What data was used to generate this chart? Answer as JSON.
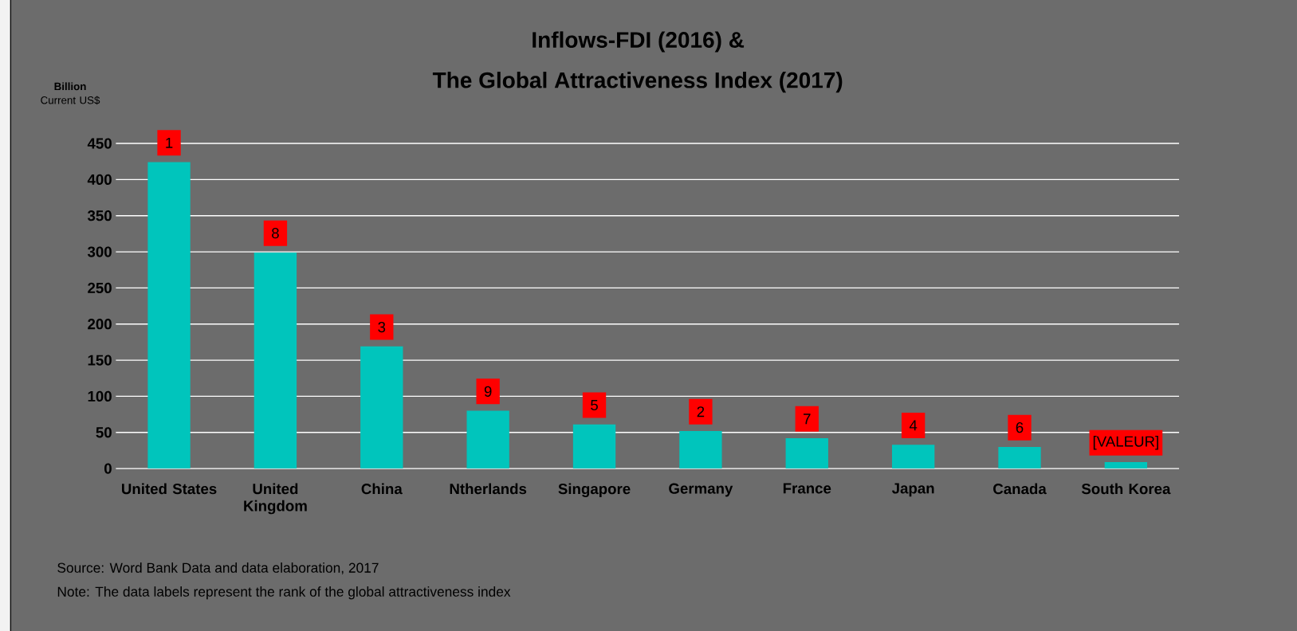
{
  "chart_data": {
    "type": "bar",
    "title": "Inflows-FDI (2016) &",
    "subtitle": "The Global Attractiveness Index (2017)",
    "ylabel": "**Billion** Current US$",
    "categories": [
      "United States",
      "United Kingdom",
      "China",
      "Ntherlands",
      "Singapore",
      "Germany",
      "France",
      "Japan",
      "Canada",
      "South Korea"
    ],
    "values": [
      424,
      299,
      169,
      80,
      61,
      52,
      42,
      33,
      30,
      9
    ],
    "color": "#00c5bc",
    "ylim": [
      0,
      450
    ],
    "yticks": [
      0,
      50,
      100,
      150,
      200,
      250,
      300,
      350,
      400,
      450
    ],
    "grid": "y",
    "annotations": [
      "Source: Word Bank Data and data elaboration, 2017",
      "Note: The data labels represent the rank of the global attractiveness index",
      {
        "text": "1",
        "x": "United States",
        "y": 424
      },
      {
        "text": "8",
        "x": "United Kingdom",
        "y": 299
      },
      {
        "text": "3",
        "x": "China",
        "y": 169
      },
      {
        "text": "9",
        "x": "Ntherlands",
        "y": 80
      },
      {
        "text": "5",
        "x": "Singapore",
        "y": 61
      },
      {
        "text": "2",
        "x": "Germany",
        "y": 52
      },
      {
        "text": "7",
        "x": "France",
        "y": 42
      },
      {
        "text": "4",
        "x": "Japan",
        "y": 33
      },
      {
        "text": "6",
        "x": "Canada",
        "y": 30
      },
      {
        "text": "[VALEUR]",
        "x": "South Korea",
        "y": 9
      }
    ]
  }
}
